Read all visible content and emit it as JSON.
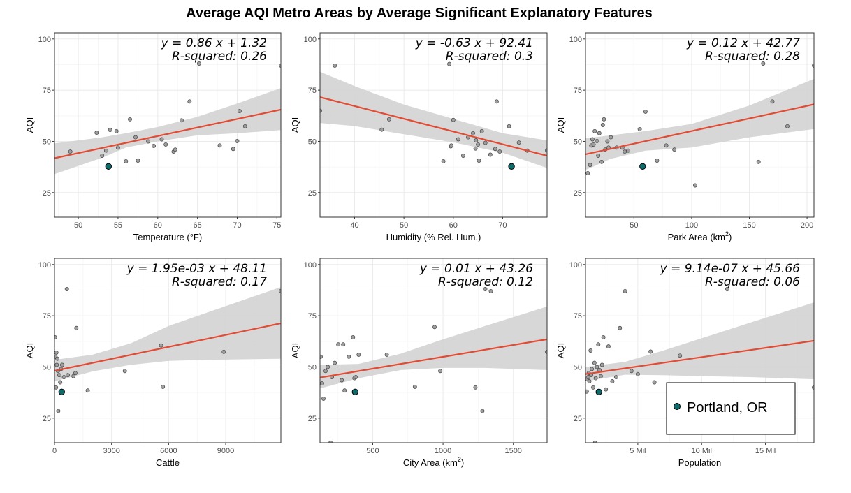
{
  "title": "Average AQI Metro Areas by Average Significant Explanatory Features",
  "colors": {
    "fit_line": "#e34a33",
    "ci_band": "#d3d3d3",
    "point_fill": "#9e9e9e",
    "highlight_fill": "#0e6b6b",
    "grid": "#ebebeb"
  },
  "legend": {
    "label": "Portland, OR",
    "placement": "bottom-right of last panel"
  },
  "chart_data": [
    {
      "type": "scatter",
      "ylabel": "AQI",
      "xlabel": "Temperature (°F)",
      "xlabel_sup": "",
      "xlim": [
        47,
        75.5
      ],
      "ylim": [
        13,
        103
      ],
      "xticks": [
        50,
        55,
        60,
        65,
        70,
        75
      ],
      "xtick_labels": [
        "50",
        "55",
        "60",
        "65",
        "70",
        "75"
      ],
      "yticks": [
        25,
        50,
        75,
        100
      ],
      "ytick_labels": [
        "25",
        "50",
        "75",
        "100"
      ],
      "equation": "y = 0.86 x + 1.32",
      "r_squared": "R-squared: 0.26",
      "fit": {
        "x": [
          47,
          75.5
        ],
        "y": [
          41.8,
          65.5
        ]
      },
      "ci_band": {
        "x": [
          47,
          53,
          56,
          60,
          65,
          70,
          75.5
        ],
        "lower": [
          34,
          42,
          47,
          50,
          53,
          54,
          55.5
        ],
        "upper": [
          49,
          52,
          54,
          57,
          62,
          68.5,
          76
        ]
      },
      "points": [
        [
          49,
          45
        ],
        [
          52.3,
          54.2
        ],
        [
          53,
          43
        ],
        [
          53.5,
          45.5
        ],
        [
          54,
          55.6
        ],
        [
          54.8,
          55
        ],
        [
          55,
          47
        ],
        [
          56,
          40.3
        ],
        [
          56.5,
          60.8
        ],
        [
          57.2,
          52
        ],
        [
          57.5,
          40.6
        ],
        [
          58.8,
          50
        ],
        [
          59.5,
          47.8
        ],
        [
          60.5,
          51
        ],
        [
          61,
          48.5
        ],
        [
          62,
          45
        ],
        [
          62.2,
          46
        ],
        [
          63,
          60.3
        ],
        [
          64,
          69.5
        ],
        [
          65.2,
          88
        ],
        [
          67.8,
          48
        ],
        [
          69.5,
          46.3
        ],
        [
          70,
          50.2
        ],
        [
          70.3,
          64.8
        ],
        [
          71,
          57.4
        ],
        [
          75.5,
          87
        ]
      ],
      "highlight": [
        53.8,
        37.8
      ]
    },
    {
      "type": "scatter",
      "ylabel": "AQI",
      "xlabel": "Humidity (% Rel. Hum.)",
      "xlabel_sup": "",
      "xlim": [
        33,
        79
      ],
      "ylim": [
        13,
        103
      ],
      "xticks": [
        40,
        50,
        60,
        70
      ],
      "xtick_labels": [
        "40",
        "50",
        "60",
        "70"
      ],
      "yticks": [
        25,
        50,
        75,
        100
      ],
      "ytick_labels": [
        "25",
        "50",
        "75",
        "100"
      ],
      "equation": "y = -0.63 x + 92.41",
      "r_squared": "R-squared: 0.3",
      "fit": {
        "x": [
          33,
          79
        ],
        "y": [
          71.6,
          43
        ]
      },
      "ci_band": {
        "x": [
          33,
          40,
          50,
          60,
          70,
          79
        ],
        "lower": [
          59,
          57.5,
          53.5,
          49.5,
          44.5,
          37
        ],
        "upper": [
          84,
          77,
          68,
          61,
          54,
          50.5
        ]
      },
      "points": [
        [
          33,
          65
        ],
        [
          36,
          87
        ],
        [
          45.5,
          55.7
        ],
        [
          47,
          60.8
        ],
        [
          58,
          40.3
        ],
        [
          59.2,
          87.8
        ],
        [
          59.5,
          47.6
        ],
        [
          59.6,
          48
        ],
        [
          60,
          60.5
        ],
        [
          61,
          51
        ],
        [
          62,
          43
        ],
        [
          63,
          52
        ],
        [
          64,
          54
        ],
        [
          64.5,
          46.5
        ],
        [
          64.6,
          50.5
        ],
        [
          65,
          48.5
        ],
        [
          65.2,
          40.6
        ],
        [
          65.8,
          55
        ],
        [
          66.5,
          49.3
        ],
        [
          67.5,
          43.5
        ],
        [
          68.5,
          46.3
        ],
        [
          68.8,
          69.5
        ],
        [
          69.4,
          45
        ],
        [
          71.3,
          57.4
        ],
        [
          73.3,
          49.4
        ],
        [
          75,
          45.5
        ],
        [
          79,
          45.6
        ]
      ],
      "highlight": [
        71.8,
        37.8
      ]
    },
    {
      "type": "scatter",
      "ylabel": "AQI",
      "xlabel": "Park Area  (km",
      "xlabel_sup": "2",
      "xlim": [
        8,
        206
      ],
      "ylim": [
        13,
        103
      ],
      "xticks": [
        50,
        100,
        150,
        200
      ],
      "xtick_labels": [
        "50",
        "100",
        "150",
        "200"
      ],
      "yticks": [
        25,
        50,
        75,
        100
      ],
      "ytick_labels": [
        "25",
        "50",
        "75",
        "100"
      ],
      "equation": "y = 0.12 x + 42.77",
      "r_squared": "R-squared: 0.28",
      "fit": {
        "x": [
          8,
          206
        ],
        "y": [
          43.7,
          68.1
        ]
      },
      "ci_band": {
        "x": [
          8,
          30,
          60,
          100,
          150,
          206
        ],
        "lower": [
          36,
          41.5,
          45.5,
          47,
          52,
          56
        ],
        "upper": [
          51.5,
          53,
          55,
          58.5,
          67.5,
          80.5
        ]
      },
      "points": [
        [
          10,
          34.5
        ],
        [
          12,
          38.5
        ],
        [
          13,
          48
        ],
        [
          14,
          51
        ],
        [
          15,
          48.5
        ],
        [
          16,
          55
        ],
        [
          18,
          50.2
        ],
        [
          19,
          43
        ],
        [
          20,
          54
        ],
        [
          22,
          40
        ],
        [
          23,
          58
        ],
        [
          24,
          60.8
        ],
        [
          25,
          46
        ],
        [
          27,
          50
        ],
        [
          28,
          47
        ],
        [
          30,
          52
        ],
        [
          35,
          47
        ],
        [
          40,
          47
        ],
        [
          42,
          45
        ],
        [
          45,
          45.5
        ],
        [
          55,
          56
        ],
        [
          60,
          64.5
        ],
        [
          70,
          40.6
        ],
        [
          78,
          48
        ],
        [
          85,
          46
        ],
        [
          103,
          28.5
        ],
        [
          158,
          40
        ],
        [
          162,
          88
        ],
        [
          170,
          69.5
        ],
        [
          183,
          57.4
        ],
        [
          206,
          87
        ]
      ],
      "highlight": [
        57.5,
        37.8
      ]
    },
    {
      "type": "scatter",
      "ylabel": "AQI",
      "xlabel": "Cattle",
      "xlabel_sup": "",
      "xlim": [
        0,
        11900
      ],
      "ylim": [
        13,
        103
      ],
      "xticks": [
        0,
        3000,
        6000,
        9000
      ],
      "xtick_labels": [
        "0",
        "3000",
        "6000",
        "9000"
      ],
      "yticks": [
        25,
        50,
        75,
        100
      ],
      "ytick_labels": [
        "25",
        "50",
        "75",
        "100"
      ],
      "equation": "y = 1.95e-03 x + 48.11",
      "r_squared": "R-squared: 0.17",
      "fit": {
        "x": [
          0,
          11900
        ],
        "y": [
          48.1,
          71.3
        ]
      },
      "ci_band": {
        "x": [
          0,
          2000,
          4000,
          6000,
          8000,
          11900
        ],
        "lower": [
          43,
          47.8,
          51,
          53,
          53.5,
          54
        ],
        "upper": [
          53.5,
          56,
          61.5,
          70,
          76.5,
          89
        ]
      },
      "points": [
        [
          30,
          64.5
        ],
        [
          50,
          55
        ],
        [
          80,
          40
        ],
        [
          100,
          57
        ],
        [
          120,
          51
        ],
        [
          150,
          54
        ],
        [
          180,
          48
        ],
        [
          200,
          28.5
        ],
        [
          250,
          46
        ],
        [
          300,
          42.5
        ],
        [
          350,
          49
        ],
        [
          400,
          51
        ],
        [
          500,
          45
        ],
        [
          650,
          88
        ],
        [
          700,
          46
        ],
        [
          1000,
          45.5
        ],
        [
          1100,
          47
        ],
        [
          1150,
          69
        ],
        [
          1750,
          38.5
        ],
        [
          3700,
          48
        ],
        [
          5600,
          60.5
        ],
        [
          5700,
          40.3
        ],
        [
          8900,
          57.4
        ],
        [
          11900,
          87
        ]
      ],
      "highlight": [
        380,
        37.8
      ]
    },
    {
      "type": "scatter",
      "ylabel": "AQI",
      "xlabel": "City Area  (km",
      "xlabel_sup": "2",
      "xlim": [
        125,
        1740
      ],
      "ylim": [
        13,
        103
      ],
      "xticks": [
        500,
        1000,
        1500
      ],
      "xtick_labels": [
        "500",
        "1000",
        "1500"
      ],
      "yticks": [
        25,
        50,
        75,
        100
      ],
      "ytick_labels": [
        "25",
        "50",
        "75",
        "100"
      ],
      "equation": "y = 0.01 x + 43.26",
      "r_squared": "R-squared: 0.12",
      "fit": {
        "x": [
          125,
          1740
        ],
        "y": [
          44.8,
          63.5
        ]
      },
      "ci_band": {
        "x": [
          125,
          400,
          700,
          1000,
          1300,
          1740
        ],
        "lower": [
          39.5,
          44.5,
          48.5,
          49.5,
          49.5,
          48.5
        ],
        "upper": [
          51,
          51.5,
          56.5,
          63.5,
          70,
          79.5
        ]
      },
      "points": [
        [
          130,
          55
        ],
        [
          140,
          42
        ],
        [
          150,
          34.5
        ],
        [
          165,
          48
        ],
        [
          180,
          50
        ],
        [
          200,
          13
        ],
        [
          210,
          45
        ],
        [
          230,
          52
        ],
        [
          255,
          61
        ],
        [
          280,
          43.5
        ],
        [
          290,
          61
        ],
        [
          300,
          38.5
        ],
        [
          330,
          55
        ],
        [
          360,
          64.5
        ],
        [
          370,
          44.5
        ],
        [
          380,
          45
        ],
        [
          400,
          56
        ],
        [
          600,
          56
        ],
        [
          800,
          40.3
        ],
        [
          940,
          69.5
        ],
        [
          980,
          48
        ],
        [
          1230,
          40
        ],
        [
          1280,
          28.5
        ],
        [
          1300,
          88
        ],
        [
          1340,
          87
        ],
        [
          1740,
          57.4
        ]
      ],
      "highlight": [
        375,
        37.8
      ]
    },
    {
      "type": "scatter",
      "ylabel": "AQI",
      "xlabel": "Population",
      "xlabel_sup": "",
      "xlim": [
        900000,
        18800000
      ],
      "ylim": [
        13,
        103
      ],
      "xticks": [
        5000000,
        10000000,
        15000000
      ],
      "xtick_labels": [
        "5 Mil",
        "10 Mil",
        "15 Mil"
      ],
      "yticks": [
        25,
        50,
        75,
        100
      ],
      "ytick_labels": [
        "25",
        "50",
        "75",
        "100"
      ],
      "equation": "y = 9.14e-07 x + 45.66",
      "r_squared": "R-squared: 0.06",
      "fit": {
        "x": [
          900000,
          18800000
        ],
        "y": [
          46.5,
          62.8
        ]
      },
      "ci_band": {
        "x": [
          900000,
          4000000,
          7000000,
          10000000,
          14000000,
          18800000
        ],
        "lower": [
          43,
          46.2,
          46,
          45.5,
          45,
          44
        ],
        "upper": [
          50,
          52.5,
          58,
          64,
          72,
          81.5
        ]
      },
      "points": [
        [
          1000000,
          38
        ],
        [
          1050000,
          44
        ],
        [
          1100000,
          45
        ],
        [
          1150000,
          47
        ],
        [
          1200000,
          43
        ],
        [
          1300000,
          58
        ],
        [
          1350000,
          46
        ],
        [
          1400000,
          49
        ],
        [
          1500000,
          40
        ],
        [
          1600000,
          52
        ],
        [
          1650000,
          13
        ],
        [
          1700000,
          44.5
        ],
        [
          1800000,
          50
        ],
        [
          1900000,
          61
        ],
        [
          2000000,
          48.5
        ],
        [
          2100000,
          45.5
        ],
        [
          2200000,
          51
        ],
        [
          2300000,
          64.5
        ],
        [
          2500000,
          39
        ],
        [
          2700000,
          60
        ],
        [
          3000000,
          43
        ],
        [
          3300000,
          45
        ],
        [
          3600000,
          69
        ],
        [
          4000000,
          87
        ],
        [
          4500000,
          48
        ],
        [
          5000000,
          46.5
        ],
        [
          6000000,
          57.5
        ],
        [
          6300000,
          42.5
        ],
        [
          8300000,
          55.5
        ],
        [
          12000000,
          88
        ],
        [
          18800000,
          40
        ]
      ],
      "highlight": [
        1950000,
        37.8
      ]
    }
  ]
}
